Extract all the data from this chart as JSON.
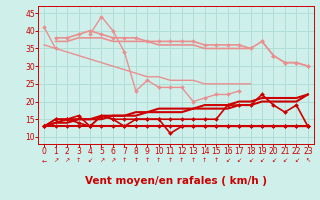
{
  "bg_color": "#cff0ea",
  "grid_color": "#b0ddd5",
  "xlabel": "Vent moyen/en rafales ( km/h )",
  "xlim": [
    -0.5,
    23.5
  ],
  "ylim": [
    8,
    47
  ],
  "yticks": [
    10,
    15,
    20,
    25,
    30,
    35,
    40,
    45
  ],
  "xticks": [
    0,
    1,
    2,
    3,
    4,
    5,
    6,
    7,
    8,
    9,
    10,
    11,
    12,
    13,
    14,
    15,
    16,
    17,
    18,
    19,
    20,
    21,
    22,
    23
  ],
  "lines": [
    {
      "label": "light1",
      "x": [
        0,
        1,
        2,
        3,
        4,
        5,
        6,
        7,
        8,
        9,
        10,
        11,
        12,
        13,
        14,
        15,
        16,
        17,
        18,
        19,
        20,
        21,
        22,
        23
      ],
      "y": [
        41,
        35,
        null,
        null,
        39,
        44,
        40,
        34,
        23,
        26,
        24,
        24,
        24,
        20,
        21,
        22,
        22,
        23,
        null,
        37,
        33,
        31,
        31,
        30
      ],
      "color": "#e89090",
      "lw": 1.0,
      "marker": "D",
      "ms": 2.0
    },
    {
      "label": "light2",
      "x": [
        0,
        1,
        2,
        3,
        4,
        5,
        6,
        7,
        8,
        9,
        10,
        11,
        12,
        13,
        14,
        15,
        16,
        17,
        18,
        19,
        20,
        21,
        22,
        23
      ],
      "y": [
        null,
        38,
        38,
        39,
        40,
        39,
        38,
        38,
        38,
        37,
        37,
        37,
        37,
        37,
        36,
        36,
        36,
        36,
        35,
        37,
        33,
        31,
        31,
        30
      ],
      "color": "#e89090",
      "lw": 1.2,
      "marker": "D",
      "ms": 2.0
    },
    {
      "label": "light3",
      "x": [
        0,
        1,
        2,
        3,
        4,
        5,
        6,
        7,
        8,
        9,
        10,
        11,
        12,
        13,
        14,
        15,
        16,
        17,
        18,
        19,
        20,
        21,
        22,
        23
      ],
      "y": [
        null,
        37,
        37,
        38,
        38,
        38,
        37,
        37,
        37,
        37,
        36,
        36,
        36,
        36,
        35,
        35,
        35,
        35,
        35,
        null,
        null,
        null,
        null,
        null
      ],
      "color": "#e89090",
      "lw": 1.2,
      "marker": null,
      "ms": 0
    },
    {
      "label": "light_slope",
      "x": [
        0,
        1,
        2,
        3,
        4,
        5,
        6,
        7,
        8,
        9,
        10,
        11,
        12,
        13,
        14,
        15,
        16,
        17,
        18,
        19,
        20,
        21,
        22,
        23
      ],
      "y": [
        36,
        35,
        34,
        33,
        32,
        31,
        30,
        29,
        28,
        27,
        27,
        26,
        26,
        26,
        25,
        25,
        25,
        25,
        25,
        null,
        null,
        null,
        null,
        null
      ],
      "color": "#e89090",
      "lw": 1.0,
      "marker": null,
      "ms": 0
    },
    {
      "label": "dark_flat",
      "x": [
        0,
        1,
        2,
        3,
        4,
        5,
        6,
        7,
        8,
        9,
        10,
        11,
        12,
        13,
        14,
        15,
        16,
        17,
        18,
        19,
        20,
        21,
        22,
        23
      ],
      "y": [
        13,
        13,
        13,
        13,
        13,
        13,
        13,
        13,
        13,
        13,
        13,
        13,
        13,
        13,
        13,
        13,
        13,
        13,
        13,
        13,
        13,
        13,
        13,
        13
      ],
      "color": "#cc0000",
      "lw": 1.5,
      "marker": "D",
      "ms": 2.0
    },
    {
      "label": "dark_wavy",
      "x": [
        0,
        1,
        2,
        3,
        4,
        5,
        6,
        7,
        8,
        9,
        10,
        11,
        12,
        13,
        14,
        15,
        16,
        17,
        18,
        19,
        20,
        21,
        22,
        23
      ],
      "y": [
        13,
        15,
        15,
        14,
        13,
        16,
        15,
        13,
        15,
        15,
        15,
        11,
        13,
        13,
        13,
        13,
        13,
        13,
        13,
        13,
        13,
        13,
        13,
        13
      ],
      "color": "#cc0000",
      "lw": 1.2,
      "marker": "D",
      "ms": 2.0
    },
    {
      "label": "dark_rise1",
      "x": [
        0,
        1,
        2,
        3,
        4,
        5,
        6,
        7,
        8,
        9,
        10,
        11,
        12,
        13,
        14,
        15,
        16,
        17,
        18,
        19,
        20,
        21,
        22,
        23
      ],
      "y": [
        13,
        14,
        14,
        15,
        15,
        15,
        16,
        16,
        16,
        17,
        17,
        17,
        17,
        18,
        18,
        18,
        18,
        19,
        19,
        20,
        20,
        20,
        20,
        22
      ],
      "color": "#cc0000",
      "lw": 1.5,
      "marker": null,
      "ms": 0
    },
    {
      "label": "dark_rise2",
      "x": [
        0,
        1,
        2,
        3,
        4,
        5,
        6,
        7,
        8,
        9,
        10,
        11,
        12,
        13,
        14,
        15,
        16,
        17,
        18,
        19,
        20,
        21,
        22,
        23
      ],
      "y": [
        13,
        14,
        15,
        15,
        15,
        16,
        16,
        16,
        17,
        17,
        18,
        18,
        18,
        18,
        19,
        19,
        19,
        20,
        20,
        21,
        21,
        21,
        21,
        22
      ],
      "color": "#cc0000",
      "lw": 1.5,
      "marker": null,
      "ms": 0
    },
    {
      "label": "dark_volatile",
      "x": [
        0,
        1,
        2,
        3,
        4,
        5,
        6,
        7,
        8,
        9,
        10,
        11,
        12,
        13,
        14,
        15,
        16,
        17,
        18,
        19,
        20,
        21,
        22,
        23
      ],
      "y": [
        13,
        15,
        15,
        16,
        13,
        16,
        15,
        15,
        15,
        15,
        15,
        15,
        15,
        15,
        15,
        15,
        19,
        19,
        19,
        22,
        19,
        17,
        19,
        13
      ],
      "color": "#cc0000",
      "lw": 1.2,
      "marker": "D",
      "ms": 2.0
    }
  ],
  "arrow_dirs": [
    "←",
    "↗",
    "↗",
    "↑",
    "↙",
    "↗",
    "↗",
    "↑",
    "↑",
    "↑",
    "↑",
    "↑",
    "↑",
    "↑",
    "↑",
    "↑",
    "↙",
    "↙",
    "↙",
    "↙",
    "↙",
    "↙",
    "↙",
    "↖"
  ],
  "xlabel_color": "#cc0000",
  "tick_color": "#cc0000",
  "xlabel_fontsize": 7.5,
  "tick_fontsize": 5.5
}
